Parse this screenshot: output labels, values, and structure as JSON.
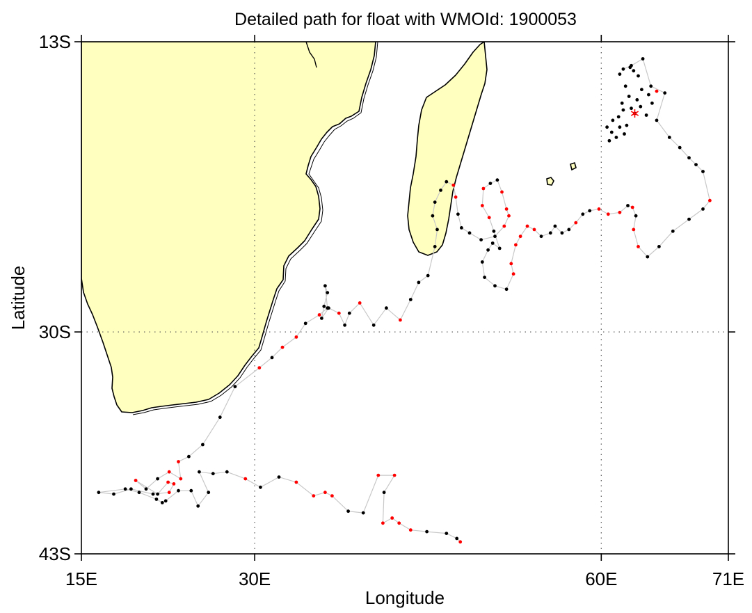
{
  "title": "Detailed path for float with WMOId: 1900053",
  "axes": {
    "xlabel": "Longitude",
    "ylabel": "Latitude",
    "x_ticks": [
      {
        "lon": 15,
        "label": "15E"
      },
      {
        "lon": 30,
        "label": "30E"
      },
      {
        "lon": 60,
        "label": "60E"
      },
      {
        "lon": 71,
        "label": "71E"
      }
    ],
    "y_ticks": [
      {
        "lat": -13,
        "label": "13S"
      },
      {
        "lat": -30,
        "label": "30S"
      },
      {
        "lat": -43,
        "label": "43S"
      }
    ],
    "xlim": [
      15,
      71
    ],
    "ylim": [
      -43,
      -13
    ],
    "grid_lon": [
      30,
      60
    ],
    "grid_lat": [
      -30
    ]
  },
  "colors": {
    "land": "#ffffc0",
    "coast": "#000000",
    "track": "#c8c8c8",
    "point": "#000000",
    "highlight": "#ff0000",
    "start_marker": "#ff0000"
  },
  "chart_data": {
    "type": "scatter",
    "start_marker": {
      "lon": 62.9,
      "lat": -17.2,
      "symbol": "asterisk"
    },
    "track": [
      [
        61.9,
        -14.6
      ],
      [
        62.6,
        -14.4
      ],
      [
        63.6,
        -14.0
      ],
      [
        64.3,
        -15.6
      ],
      [
        65.5,
        -16.0
      ],
      [
        64.8,
        -17.6
      ],
      [
        65.9,
        -18.6
      ],
      [
        66.8,
        -19.2
      ],
      [
        67.6,
        -19.8
      ],
      [
        68.2,
        -20.2
      ],
      [
        68.8,
        -20.6
      ],
      [
        69.4,
        -22.3
      ],
      [
        68.8,
        -22.8
      ],
      [
        67.6,
        -23.4
      ],
      [
        66.2,
        -24.1
      ],
      [
        65.0,
        -25.0
      ],
      [
        64.0,
        -25.6
      ],
      [
        63.2,
        -25.0
      ],
      [
        62.8,
        -24.0
      ],
      [
        63.0,
        -23.2
      ],
      [
        62.7,
        -22.7
      ],
      [
        62.3,
        -22.6
      ],
      [
        61.6,
        -23.0
      ],
      [
        60.6,
        -23.1
      ],
      [
        59.8,
        -22.8
      ],
      [
        59.0,
        -22.9
      ],
      [
        58.4,
        -23.1
      ],
      [
        57.8,
        -23.6
      ],
      [
        57.2,
        -24.0
      ],
      [
        56.6,
        -24.2
      ],
      [
        56.0,
        -23.8
      ],
      [
        55.6,
        -24.2
      ],
      [
        54.8,
        -24.4
      ],
      [
        54.2,
        -24.0
      ],
      [
        53.6,
        -23.8
      ],
      [
        53.0,
        -24.4
      ],
      [
        52.6,
        -24.9
      ],
      [
        52.2,
        -26.0
      ],
      [
        52.4,
        -26.6
      ],
      [
        51.8,
        -27.5
      ],
      [
        50.8,
        -27.3
      ],
      [
        49.9,
        -26.8
      ],
      [
        49.7,
        -25.9
      ],
      [
        50.2,
        -25.2
      ],
      [
        50.6,
        -24.8
      ],
      [
        51.2,
        -25.1
      ],
      [
        50.7,
        -24.1
      ],
      [
        50.3,
        -23.3
      ],
      [
        49.7,
        -22.6
      ],
      [
        49.8,
        -21.6
      ],
      [
        50.4,
        -21.3
      ],
      [
        51.0,
        -21.1
      ],
      [
        51.4,
        -21.8
      ],
      [
        51.8,
        -22.8
      ],
      [
        52.0,
        -23.2
      ],
      [
        51.6,
        -23.8
      ],
      [
        50.8,
        -24.4
      ],
      [
        49.6,
        -24.6
      ],
      [
        48.6,
        -24.2
      ],
      [
        47.9,
        -23.9
      ],
      [
        47.6,
        -23.1
      ],
      [
        47.4,
        -22.1
      ],
      [
        47.2,
        -21.4
      ],
      [
        46.6,
        -21.2
      ],
      [
        46.1,
        -21.7
      ],
      [
        45.6,
        -22.4
      ],
      [
        45.4,
        -23.2
      ],
      [
        45.8,
        -24.0
      ],
      [
        45.6,
        -25.0
      ],
      [
        45.0,
        -26.7
      ],
      [
        44.2,
        -27.1
      ],
      [
        43.5,
        -28.1
      ],
      [
        42.6,
        -29.3
      ],
      [
        41.4,
        -28.6
      ],
      [
        40.3,
        -29.6
      ],
      [
        39.1,
        -28.3
      ],
      [
        38.2,
        -28.9
      ],
      [
        37.8,
        -29.6
      ],
      [
        37.3,
        -28.9
      ],
      [
        36.4,
        -28.6
      ],
      [
        35.8,
        -29.2
      ],
      [
        36.0,
        -28.5
      ],
      [
        36.3,
        -27.7
      ],
      [
        36.2,
        -27.5
      ],
      [
        36.1,
        -27.3
      ],
      [
        36.3,
        -28.6
      ],
      [
        35.6,
        -29.0
      ],
      [
        34.4,
        -29.5
      ],
      [
        33.6,
        -30.3
      ],
      [
        32.4,
        -30.9
      ],
      [
        31.5,
        -31.5
      ],
      [
        30.4,
        -32.1
      ],
      [
        28.3,
        -33.2
      ],
      [
        27.0,
        -35.0
      ],
      [
        25.5,
        -36.6
      ],
      [
        24.3,
        -37.3
      ],
      [
        23.4,
        -37.6
      ],
      [
        23.6,
        -38.6
      ],
      [
        22.6,
        -38.2
      ],
      [
        21.6,
        -38.6
      ],
      [
        20.6,
        -39.2
      ],
      [
        19.7,
        -38.7
      ],
      [
        21.6,
        -39.5
      ],
      [
        22.5,
        -38.8
      ],
      [
        23.0,
        -38.9
      ],
      [
        22.6,
        -39.4
      ],
      [
        21.2,
        -39.5
      ],
      [
        19.3,
        -39.2
      ],
      [
        17.8,
        -39.5
      ],
      [
        16.5,
        -39.4
      ],
      [
        18.8,
        -39.2
      ],
      [
        20.0,
        -39.4
      ],
      [
        21.5,
        -39.8
      ],
      [
        22.0,
        -40.0
      ],
      [
        22.3,
        -39.9
      ],
      [
        23.4,
        -39.3
      ],
      [
        24.5,
        -39.3
      ],
      [
        25.1,
        -40.2
      ],
      [
        26.0,
        -39.4
      ],
      [
        25.2,
        -38.2
      ],
      [
        26.4,
        -38.3
      ],
      [
        27.6,
        -38.2
      ],
      [
        29.2,
        -38.6
      ],
      [
        30.5,
        -39.1
      ],
      [
        32.1,
        -38.5
      ],
      [
        33.6,
        -38.8
      ],
      [
        35.1,
        -39.6
      ],
      [
        36.1,
        -39.4
      ],
      [
        36.7,
        -39.6
      ],
      [
        38.1,
        -40.5
      ],
      [
        39.4,
        -40.6
      ],
      [
        40.7,
        -38.4
      ],
      [
        42.1,
        -38.4
      ],
      [
        41.2,
        -39.4
      ],
      [
        41.1,
        -41.2
      ],
      [
        41.9,
        -40.9
      ],
      [
        42.5,
        -41.2
      ],
      [
        43.5,
        -41.6
      ],
      [
        44.9,
        -41.7
      ],
      [
        46.6,
        -41.8
      ],
      [
        47.5,
        -42.1
      ],
      [
        47.8,
        -42.3
      ]
    ],
    "points": [
      [
        62.9,
        -17.2,
        "k"
      ],
      [
        61.6,
        -14.9,
        "k"
      ],
      [
        62.1,
        -15.6,
        "k"
      ],
      [
        62.4,
        -16.2,
        "k"
      ],
      [
        61.8,
        -16.6,
        "k"
      ],
      [
        62.6,
        -16.9,
        "k"
      ],
      [
        63.1,
        -16.4,
        "k"
      ],
      [
        63.5,
        -15.8,
        "k"
      ],
      [
        64.1,
        -16.1,
        "k"
      ],
      [
        64.8,
        -15.9,
        "r"
      ],
      [
        61.0,
        -17.6,
        "k"
      ],
      [
        60.5,
        -18.0,
        "k"
      ],
      [
        60.9,
        -18.3,
        "k"
      ],
      [
        61.3,
        -18.6,
        "k"
      ],
      [
        60.7,
        -18.8,
        "k"
      ],
      [
        61.6,
        -18.0,
        "k"
      ],
      [
        62.0,
        -18.4,
        "k"
      ],
      [
        62.2,
        -17.9,
        "k"
      ],
      [
        61.5,
        -17.4,
        "k"
      ],
      [
        61.9,
        -17.0,
        "k"
      ],
      [
        63.4,
        -16.8,
        "k"
      ],
      [
        63.9,
        -17.3,
        "k"
      ],
      [
        64.4,
        -16.6,
        "k"
      ],
      [
        63.2,
        -15.0,
        "k"
      ],
      [
        62.8,
        -14.7,
        "k"
      ],
      [
        62.5,
        -14.5,
        "k"
      ],
      [
        61.9,
        -14.6,
        "k"
      ],
      [
        62.6,
        -14.4,
        "k"
      ],
      [
        63.6,
        -14.0,
        "k"
      ],
      [
        64.3,
        -15.6,
        "k"
      ],
      [
        65.5,
        -16.0,
        "k"
      ],
      [
        64.8,
        -17.6,
        "k"
      ],
      [
        65.9,
        -18.6,
        "k"
      ],
      [
        66.8,
        -19.2,
        "k"
      ],
      [
        67.6,
        -19.8,
        "k"
      ],
      [
        68.2,
        -20.2,
        "k"
      ],
      [
        68.8,
        -20.6,
        "k"
      ],
      [
        69.4,
        -22.3,
        "r"
      ],
      [
        68.8,
        -22.8,
        "k"
      ],
      [
        67.6,
        -23.4,
        "k"
      ],
      [
        66.2,
        -24.1,
        "k"
      ],
      [
        65.0,
        -25.0,
        "k"
      ],
      [
        64.0,
        -25.6,
        "k"
      ],
      [
        63.2,
        -25.0,
        "r"
      ],
      [
        62.8,
        -24.0,
        "r"
      ],
      [
        63.0,
        -23.2,
        "k"
      ],
      [
        62.7,
        -22.7,
        "r"
      ],
      [
        62.3,
        -22.6,
        "k"
      ],
      [
        61.6,
        -23.0,
        "r"
      ],
      [
        60.6,
        -23.1,
        "r"
      ],
      [
        59.8,
        -22.8,
        "r"
      ],
      [
        59.0,
        -22.9,
        "k"
      ],
      [
        58.4,
        -23.1,
        "k"
      ],
      [
        57.8,
        -23.6,
        "r"
      ],
      [
        57.2,
        -24.0,
        "k"
      ],
      [
        56.6,
        -24.2,
        "k"
      ],
      [
        56.0,
        -23.8,
        "k"
      ],
      [
        55.6,
        -24.2,
        "k"
      ],
      [
        54.8,
        -24.4,
        "k"
      ],
      [
        54.2,
        -24.0,
        "r"
      ],
      [
        53.6,
        -23.8,
        "r"
      ],
      [
        53.0,
        -24.4,
        "r"
      ],
      [
        52.6,
        -24.9,
        "r"
      ],
      [
        52.2,
        -26.0,
        "r"
      ],
      [
        52.4,
        -26.6,
        "r"
      ],
      [
        51.8,
        -27.5,
        "k"
      ],
      [
        50.8,
        -27.3,
        "k"
      ],
      [
        49.9,
        -26.8,
        "k"
      ],
      [
        49.7,
        -25.9,
        "k"
      ],
      [
        50.2,
        -25.2,
        "k"
      ],
      [
        50.6,
        -24.8,
        "k"
      ],
      [
        51.2,
        -25.1,
        "k"
      ],
      [
        50.7,
        -24.1,
        "k"
      ],
      [
        50.3,
        -23.3,
        "r"
      ],
      [
        49.7,
        -22.6,
        "r"
      ],
      [
        49.8,
        -21.6,
        "r"
      ],
      [
        50.4,
        -21.3,
        "k"
      ],
      [
        51.0,
        -21.1,
        "k"
      ],
      [
        51.4,
        -21.8,
        "r"
      ],
      [
        51.8,
        -22.8,
        "r"
      ],
      [
        52.0,
        -23.2,
        "r"
      ],
      [
        51.6,
        -23.8,
        "r"
      ],
      [
        50.8,
        -24.4,
        "k"
      ],
      [
        49.6,
        -24.6,
        "k"
      ],
      [
        48.6,
        -24.2,
        "k"
      ],
      [
        47.9,
        -23.9,
        "k"
      ],
      [
        47.6,
        -23.1,
        "k"
      ],
      [
        47.4,
        -22.1,
        "r"
      ],
      [
        47.2,
        -21.4,
        "r"
      ],
      [
        46.6,
        -21.2,
        "k"
      ],
      [
        46.1,
        -21.7,
        "k"
      ],
      [
        45.6,
        -22.4,
        "k"
      ],
      [
        45.4,
        -23.2,
        "k"
      ],
      [
        45.8,
        -24.0,
        "k"
      ],
      [
        45.6,
        -25.0,
        "k"
      ],
      [
        45.0,
        -26.7,
        "k"
      ],
      [
        44.2,
        -27.1,
        "k"
      ],
      [
        43.5,
        -28.1,
        "k"
      ],
      [
        42.6,
        -29.3,
        "r"
      ],
      [
        41.4,
        -28.6,
        "k"
      ],
      [
        40.3,
        -29.6,
        "k"
      ],
      [
        39.1,
        -28.3,
        "r"
      ],
      [
        38.2,
        -28.9,
        "k"
      ],
      [
        37.8,
        -29.6,
        "k"
      ],
      [
        37.3,
        -28.9,
        "r"
      ],
      [
        36.4,
        -28.6,
        "k"
      ],
      [
        35.8,
        -29.2,
        "k"
      ],
      [
        36.0,
        -28.5,
        "k"
      ],
      [
        36.3,
        -27.7,
        "k"
      ],
      [
        36.1,
        -27.3,
        "k"
      ],
      [
        36.3,
        -28.6,
        "k"
      ],
      [
        35.6,
        -29.0,
        "r"
      ],
      [
        34.4,
        -29.5,
        "k"
      ],
      [
        33.6,
        -30.3,
        "r"
      ],
      [
        32.4,
        -30.9,
        "r"
      ],
      [
        31.5,
        -31.5,
        "k"
      ],
      [
        30.4,
        -32.1,
        "r"
      ],
      [
        28.3,
        -33.2,
        "k"
      ],
      [
        27.0,
        -35.0,
        "k"
      ],
      [
        25.5,
        -36.6,
        "k"
      ],
      [
        24.3,
        -37.3,
        "k"
      ],
      [
        23.4,
        -37.6,
        "r"
      ],
      [
        23.6,
        -38.6,
        "r"
      ],
      [
        22.6,
        -38.2,
        "r"
      ],
      [
        21.6,
        -38.6,
        "k"
      ],
      [
        20.6,
        -39.2,
        "k"
      ],
      [
        19.7,
        -38.7,
        "r"
      ],
      [
        21.6,
        -39.5,
        "k"
      ],
      [
        22.5,
        -38.8,
        "r"
      ],
      [
        23.0,
        -38.9,
        "r"
      ],
      [
        22.6,
        -39.4,
        "r"
      ],
      [
        21.2,
        -39.5,
        "k"
      ],
      [
        19.3,
        -39.2,
        "k"
      ],
      [
        17.8,
        -39.5,
        "k"
      ],
      [
        16.5,
        -39.4,
        "k"
      ],
      [
        18.8,
        -39.2,
        "k"
      ],
      [
        20.0,
        -39.4,
        "k"
      ],
      [
        21.5,
        -39.8,
        "k"
      ],
      [
        22.0,
        -40.0,
        "k"
      ],
      [
        22.3,
        -39.9,
        "k"
      ],
      [
        23.4,
        -39.3,
        "k"
      ],
      [
        24.5,
        -39.3,
        "k"
      ],
      [
        25.1,
        -40.2,
        "k"
      ],
      [
        26.0,
        -39.4,
        "k"
      ],
      [
        25.2,
        -38.2,
        "k"
      ],
      [
        26.4,
        -38.3,
        "k"
      ],
      [
        27.6,
        -38.2,
        "k"
      ],
      [
        29.2,
        -38.6,
        "r"
      ],
      [
        30.5,
        -39.1,
        "k"
      ],
      [
        32.1,
        -38.5,
        "k"
      ],
      [
        33.6,
        -38.8,
        "r"
      ],
      [
        35.1,
        -39.6,
        "r"
      ],
      [
        36.1,
        -39.4,
        "r"
      ],
      [
        36.7,
        -39.6,
        "r"
      ],
      [
        38.1,
        -40.5,
        "k"
      ],
      [
        39.4,
        -40.6,
        "k"
      ],
      [
        40.7,
        -38.4,
        "r"
      ],
      [
        42.1,
        -38.4,
        "r"
      ],
      [
        41.2,
        -39.4,
        "k"
      ],
      [
        41.1,
        -41.2,
        "r"
      ],
      [
        41.9,
        -40.9,
        "r"
      ],
      [
        42.5,
        -41.2,
        "r"
      ],
      [
        43.5,
        -41.6,
        "r"
      ],
      [
        44.9,
        -41.7,
        "k"
      ],
      [
        46.6,
        -41.8,
        "k"
      ],
      [
        47.5,
        -42.1,
        "k"
      ],
      [
        47.8,
        -42.3,
        "r"
      ]
    ]
  }
}
